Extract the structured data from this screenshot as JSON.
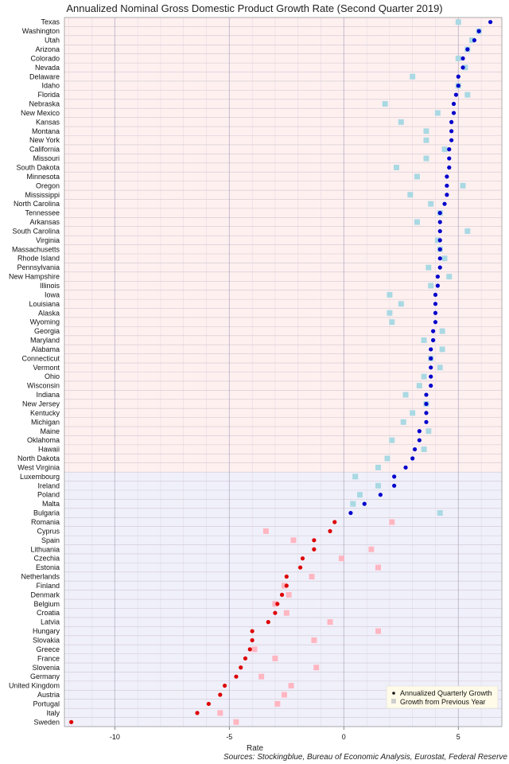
{
  "chart_data": {
    "type": "scatter",
    "title": "Annualized Nominal Gross Domestic Product Growth Rate (Second Quarter 2019)",
    "xlabel": "Rate",
    "source": "Sources: Stockingblue, Bureau of Economic Analysis, Eurostat, Federal Reserve",
    "xlim": [
      -12.2,
      6.9
    ],
    "xticks": [
      -10,
      -5,
      0,
      5
    ],
    "grid": true,
    "legend_position": "bottom-right",
    "legend": [
      "Annualized Quarterly Growth",
      "Growth from Previous Year"
    ],
    "colors": {
      "us_region_bg": "#fff0f0",
      "eu_region_bg": "#f0f0fb",
      "us_point": "#0000cc",
      "us_yoy": "#a9d9e3",
      "eu_growth_point": "#0000cc",
      "eu_yoy": "#a9d9e3",
      "eu_decline_point": "#dd0000",
      "eu_decline_yoy": "#ffb6c1"
    },
    "categories": [
      "Texas",
      "Washington",
      "Utah",
      "Arizona",
      "Colorado",
      "Nevada",
      "Delaware",
      "Idaho",
      "Florida",
      "Nebraska",
      "New Mexico",
      "Kansas",
      "Montana",
      "New York",
      "California",
      "Missouri",
      "South Dakota",
      "Minnesota",
      "Oregon",
      "Mississippi",
      "North Carolina",
      "Tennessee",
      "Arkansas",
      "South Carolina",
      "Virginia",
      "Massachusetts",
      "Rhode Island",
      "Pennsylvania",
      "New Hampshire",
      "Illinois",
      "Iowa",
      "Louisiana",
      "Alaska",
      "Wyoming",
      "Georgia",
      "Maryland",
      "Alabama",
      "Connecticut",
      "Vermont",
      "Ohio",
      "Wisconsin",
      "Indiana",
      "New Jersey",
      "Kentucky",
      "Michigan",
      "Maine",
      "Oklahoma",
      "Hawaii",
      "North Dakota",
      "West Virginia",
      "Luxembourg",
      "Ireland",
      "Poland",
      "Malta",
      "Bulgaria",
      "Romania",
      "Cyprus",
      "Spain",
      "Lithuania",
      "Czechia",
      "Estonia",
      "Netherlands",
      "Finland",
      "Denmark",
      "Belgium",
      "Croatia",
      "Latvia",
      "Hungary",
      "Slovakia",
      "Greece",
      "France",
      "Slovenia",
      "Germany",
      "United Kingdom",
      "Austria",
      "Portugal",
      "Italy",
      "Sweden"
    ],
    "us_count": 50,
    "series": [
      {
        "name": "Annualized Quarterly Growth",
        "values": [
          6.4,
          5.9,
          5.7,
          5.4,
          5.2,
          5.2,
          5.0,
          5.0,
          4.9,
          4.8,
          4.8,
          4.7,
          4.7,
          4.7,
          4.6,
          4.6,
          4.6,
          4.5,
          4.5,
          4.5,
          4.4,
          4.2,
          4.2,
          4.2,
          4.2,
          4.2,
          4.2,
          4.2,
          4.1,
          4.1,
          4.0,
          4.0,
          4.0,
          4.0,
          3.9,
          3.9,
          3.8,
          3.8,
          3.8,
          3.8,
          3.8,
          3.6,
          3.6,
          3.6,
          3.6,
          3.3,
          3.3,
          3.1,
          3.0,
          2.7,
          2.2,
          2.2,
          1.6,
          0.9,
          0.3,
          -0.4,
          -0.6,
          -1.3,
          -1.3,
          -1.8,
          -1.9,
          -2.5,
          -2.5,
          -2.7,
          -2.9,
          -3.0,
          -3.3,
          -4.0,
          -4.0,
          -4.1,
          -4.3,
          -4.5,
          -4.7,
          -5.2,
          -5.4,
          -5.9,
          -6.4,
          -11.9
        ]
      },
      {
        "name": "Growth from Previous Year",
        "values": [
          5.0,
          5.9,
          5.6,
          5.4,
          5.0,
          5.3,
          3.0,
          5.0,
          5.4,
          1.8,
          4.1,
          2.5,
          3.6,
          3.6,
          4.4,
          3.6,
          2.3,
          3.2,
          5.2,
          2.9,
          3.8,
          4.2,
          3.2,
          5.4,
          4.1,
          4.2,
          4.4,
          3.7,
          4.6,
          3.8,
          2.0,
          2.5,
          2.0,
          2.1,
          4.3,
          3.5,
          4.3,
          3.8,
          4.2,
          3.5,
          3.3,
          2.7,
          3.6,
          3.0,
          2.6,
          3.7,
          2.1,
          3.5,
          1.9,
          1.5,
          0.5,
          1.5,
          0.7,
          0.4,
          4.2,
          2.1,
          -3.4,
          -2.2,
          1.2,
          -0.1,
          1.5,
          -1.4,
          -2.6,
          -2.4,
          -3.0,
          -2.5,
          -0.6,
          1.5,
          -1.3,
          -3.9,
          -3.0,
          -1.2,
          -3.6,
          -2.3,
          -2.6,
          -2.9,
          -5.4,
          -4.7
        ]
      }
    ]
  }
}
